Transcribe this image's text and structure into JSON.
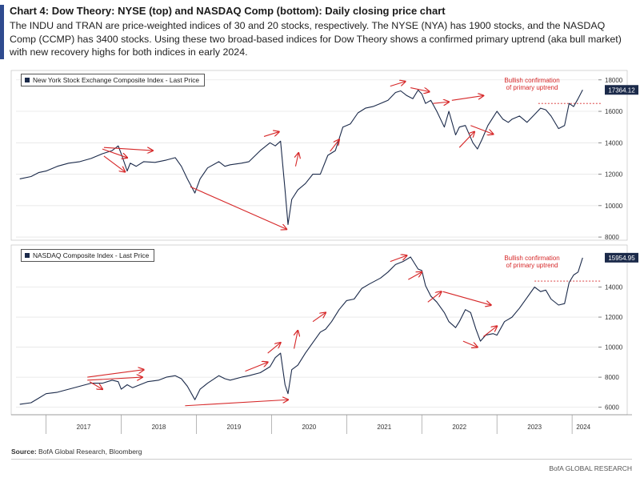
{
  "header": {
    "title": "Chart 4: Dow Theory: NYSE (top) and NASDAQ Comp (bottom): Daily closing price chart",
    "description": "The INDU and TRAN are price-weighted indices of 30 and 20 stocks, respectively. The NYSE (NYA) has 1900 stocks, and the NASDAQ Comp (CCMP) has 3400 stocks. Using these two broad-based indices for Dow Theory shows a confirmed primary uptrend (aka bull market) with new recovery highs for both indices in early 2024."
  },
  "footer": {
    "source_label": "Source:",
    "source_text": "BofA Global Research, Bloomberg",
    "brand": "BofA GLOBAL RESEARCH"
  },
  "colors": {
    "line": "#1b2a4a",
    "arrow": "#d62728",
    "tag_bg": "#1b2a4a",
    "grid": "#e6e6e6"
  },
  "chart_data": [
    {
      "type": "line",
      "title": "New York Stock Exchange Composite Index - Last Price",
      "series": [
        {
          "name": "New York Stock Exchange Composite Index - Last Price",
          "x": [
            2016.65,
            2016.8,
            2016.9,
            2017.0,
            2017.15,
            2017.3,
            2017.45,
            2017.6,
            2017.75,
            2017.88,
            2017.96,
            2018.0,
            2018.08,
            2018.12,
            2018.2,
            2018.3,
            2018.45,
            2018.6,
            2018.72,
            2018.8,
            2018.88,
            2018.98,
            2019.05,
            2019.15,
            2019.3,
            2019.38,
            2019.45,
            2019.6,
            2019.7,
            2019.85,
            2019.98,
            2020.05,
            2020.12,
            2020.18,
            2020.22,
            2020.27,
            2020.35,
            2020.45,
            2020.55,
            2020.65,
            2020.75,
            2020.85,
            2020.95,
            2021.05,
            2021.15,
            2021.25,
            2021.35,
            2021.45,
            2021.55,
            2021.65,
            2021.72,
            2021.8,
            2021.88,
            2021.95,
            2022.0,
            2022.05,
            2022.12,
            2022.2,
            2022.3,
            2022.36,
            2022.45,
            2022.5,
            2022.58,
            2022.68,
            2022.74,
            2022.8,
            2022.88,
            2022.96,
            2023.0,
            2023.08,
            2023.15,
            2023.2,
            2023.3,
            2023.4,
            2023.5,
            2023.58,
            2023.65,
            2023.72,
            2023.82,
            2023.9,
            2023.96,
            2024.02,
            2024.08,
            2024.14
          ],
          "y": [
            11700,
            11850,
            12100,
            12200,
            12500,
            12700,
            12800,
            13000,
            13300,
            13500,
            13800,
            13300,
            12200,
            12700,
            12500,
            12800,
            12750,
            12900,
            13050,
            12500,
            11700,
            10800,
            11700,
            12400,
            12800,
            12500,
            12600,
            12700,
            12800,
            13500,
            14000,
            13800,
            14100,
            11000,
            8800,
            10400,
            11000,
            11400,
            12000,
            12000,
            13200,
            13500,
            15000,
            15200,
            15900,
            16200,
            16300,
            16500,
            16700,
            17200,
            17300,
            17000,
            16800,
            17350,
            17100,
            16500,
            16700,
            16000,
            15000,
            16000,
            14500,
            15000,
            15100,
            14000,
            13600,
            14200,
            15100,
            15700,
            16000,
            15500,
            15300,
            15500,
            15700,
            15300,
            15800,
            16200,
            16100,
            15700,
            14900,
            15100,
            16500,
            16300,
            16800,
            17364
          ]
        }
      ],
      "xlim": [
        2016.6,
        2024.35
      ],
      "ylim": [
        7800,
        18600
      ],
      "yticks": [
        8000,
        10000,
        12000,
        14000,
        16000,
        18000
      ],
      "last_value": 17364.12,
      "last_value_label": "17364.12",
      "reference_level": 16500,
      "reference_start_x": 2023.55,
      "annotation": "Bullish confirmation\nof primary uptrend",
      "arrows": [
        {
          "x1": 2017.75,
          "y1": 13600,
          "x2": 2018.08,
          "y2": 13050
        },
        {
          "x1": 2017.77,
          "y1": 13150,
          "x2": 2018.05,
          "y2": 12150
        },
        {
          "x1": 2017.77,
          "y1": 13700,
          "x2": 2018.42,
          "y2": 13500
        },
        {
          "x1": 2018.92,
          "y1": 11200,
          "x2": 2020.2,
          "y2": 8500
        },
        {
          "x1": 2019.9,
          "y1": 14400,
          "x2": 2020.1,
          "y2": 14700
        },
        {
          "x1": 2020.32,
          "y1": 12500,
          "x2": 2020.36,
          "y2": 13350
        },
        {
          "x1": 2020.78,
          "y1": 13450,
          "x2": 2020.9,
          "y2": 14200
        },
        {
          "x1": 2021.58,
          "y1": 17600,
          "x2": 2021.78,
          "y2": 17900
        },
        {
          "x1": 2021.85,
          "y1": 17500,
          "x2": 2022.1,
          "y2": 17250
        },
        {
          "x1": 2022.15,
          "y1": 16500,
          "x2": 2022.36,
          "y2": 16600
        },
        {
          "x1": 2022.4,
          "y1": 16700,
          "x2": 2022.82,
          "y2": 17000
        },
        {
          "x1": 2022.5,
          "y1": 13700,
          "x2": 2022.7,
          "y2": 14700
        },
        {
          "x1": 2022.65,
          "y1": 15100,
          "x2": 2022.95,
          "y2": 14550
        }
      ],
      "ylabel": "",
      "xlabel": ""
    },
    {
      "type": "line",
      "title": "NASDAQ Composite Index - Last Price",
      "series": [
        {
          "name": "NASDAQ Composite Index - Last Price",
          "x": [
            2016.65,
            2016.8,
            2016.9,
            2017.0,
            2017.15,
            2017.3,
            2017.45,
            2017.6,
            2017.75,
            2017.88,
            2017.96,
            2018.0,
            2018.08,
            2018.15,
            2018.25,
            2018.35,
            2018.5,
            2018.6,
            2018.72,
            2018.8,
            2018.88,
            2018.98,
            2019.05,
            2019.15,
            2019.3,
            2019.38,
            2019.45,
            2019.6,
            2019.7,
            2019.85,
            2019.98,
            2020.05,
            2020.12,
            2020.18,
            2020.22,
            2020.27,
            2020.35,
            2020.45,
            2020.55,
            2020.65,
            2020.72,
            2020.8,
            2020.9,
            2021.0,
            2021.1,
            2021.2,
            2021.3,
            2021.45,
            2021.55,
            2021.65,
            2021.75,
            2021.85,
            2021.95,
            2022.0,
            2022.05,
            2022.12,
            2022.2,
            2022.3,
            2022.36,
            2022.45,
            2022.5,
            2022.58,
            2022.65,
            2022.72,
            2022.78,
            2022.85,
            2022.95,
            2023.0,
            2023.1,
            2023.2,
            2023.3,
            2023.4,
            2023.5,
            2023.58,
            2023.65,
            2023.72,
            2023.82,
            2023.9,
            2023.96,
            2024.02,
            2024.08,
            2024.14
          ],
          "y": [
            6200,
            6300,
            6600,
            6900,
            7000,
            7200,
            7400,
            7600,
            7600,
            7800,
            7700,
            7200,
            7500,
            7300,
            7500,
            7700,
            7800,
            8000,
            8100,
            7900,
            7400,
            6500,
            7200,
            7600,
            8100,
            7900,
            7800,
            8000,
            8100,
            8300,
            8700,
            9300,
            9600,
            7500,
            6900,
            8500,
            8800,
            9600,
            10300,
            11000,
            11200,
            11700,
            12500,
            13100,
            13200,
            13900,
            14200,
            14600,
            15000,
            15500,
            15700,
            16000,
            15200,
            15100,
            14100,
            13400,
            13000,
            12300,
            11700,
            11300,
            11700,
            12500,
            12300,
            11200,
            10400,
            10800,
            10900,
            10800,
            11700,
            12000,
            12600,
            13300,
            14000,
            13700,
            13800,
            13200,
            12800,
            12900,
            14300,
            14800,
            15000,
            15955
          ]
        }
      ],
      "xlim": [
        2016.6,
        2024.35
      ],
      "ylim": [
        5500,
        16800
      ],
      "yticks": [
        6000,
        8000,
        10000,
        12000,
        14000
      ],
      "last_value": 15954.95,
      "last_value_label": "15954.95",
      "reference_level": 14400,
      "reference_start_x": 2023.5,
      "annotation": "Bullish confirmation\nof primary uptrend",
      "arrows": [
        {
          "x1": 2017.55,
          "y1": 8000,
          "x2": 2018.3,
          "y2": 8500
        },
        {
          "x1": 2017.55,
          "y1": 7800,
          "x2": 2018.28,
          "y2": 8000
        },
        {
          "x1": 2017.58,
          "y1": 7700,
          "x2": 2017.75,
          "y2": 7200
        },
        {
          "x1": 2018.85,
          "y1": 6100,
          "x2": 2020.22,
          "y2": 6500
        },
        {
          "x1": 2019.65,
          "y1": 8400,
          "x2": 2019.95,
          "y2": 9000
        },
        {
          "x1": 2019.95,
          "y1": 9600,
          "x2": 2020.12,
          "y2": 10300
        },
        {
          "x1": 2020.3,
          "y1": 9900,
          "x2": 2020.35,
          "y2": 11100
        },
        {
          "x1": 2020.55,
          "y1": 11700,
          "x2": 2020.72,
          "y2": 12300
        },
        {
          "x1": 2021.58,
          "y1": 15700,
          "x2": 2021.8,
          "y2": 16100
        },
        {
          "x1": 2021.82,
          "y1": 14500,
          "x2": 2022.0,
          "y2": 15000
        },
        {
          "x1": 2022.08,
          "y1": 13000,
          "x2": 2022.26,
          "y2": 13700
        },
        {
          "x1": 2022.28,
          "y1": 13700,
          "x2": 2022.92,
          "y2": 12800
        },
        {
          "x1": 2022.55,
          "y1": 10400,
          "x2": 2022.74,
          "y2": 10000
        },
        {
          "x1": 2022.82,
          "y1": 10700,
          "x2": 2023.0,
          "y2": 11400
        }
      ],
      "ylabel": "",
      "xlabel": ""
    }
  ],
  "x_axis": {
    "year_labels": [
      "2017",
      "2018",
      "2019",
      "2020",
      "2021",
      "2022",
      "2023",
      "2024"
    ],
    "year_centers": [
      2017.5,
      2018.5,
      2019.5,
      2020.5,
      2021.5,
      2022.5,
      2023.5,
      2024.15
    ],
    "year_dividers": [
      2017.0,
      2018.0,
      2019.0,
      2020.0,
      2021.0,
      2022.0,
      2023.0,
      2024.0
    ]
  }
}
